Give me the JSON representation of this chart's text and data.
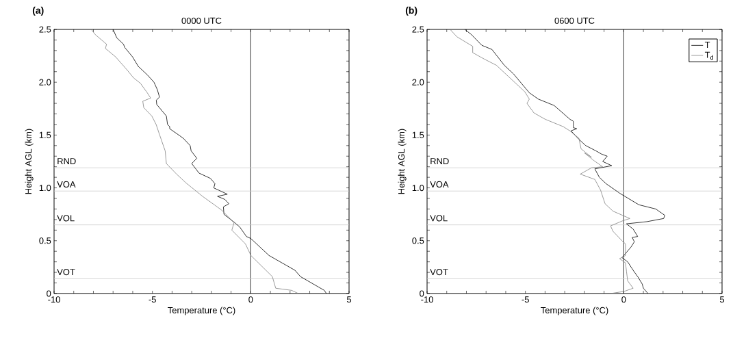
{
  "chart_data": [
    {
      "type": "line",
      "title": "0000 UTC",
      "xlabel": "Temperature (°C)",
      "ylabel": "Height AGL (km)",
      "annotations": [
        "(a)"
      ],
      "xlim": [
        -10,
        5
      ],
      "ylim": [
        0,
        2.5
      ],
      "xticks": [
        -10,
        {
          "value": -9,
          "label": null
        },
        {
          "value": -8,
          "label": null
        },
        {
          "value": -7,
          "label": null
        },
        {
          "value": -6,
          "label": null
        },
        -5,
        {
          "value": -4,
          "label": null
        },
        {
          "value": -3,
          "label": null
        },
        {
          "value": -2,
          "label": null
        },
        {
          "value": -1,
          "label": null
        },
        0,
        {
          "value": 1,
          "label": null
        },
        {
          "value": 2,
          "label": null
        },
        {
          "value": 3,
          "label": null
        },
        {
          "value": 4,
          "label": null
        },
        5
      ],
      "yticks": [
        0,
        {
          "value": 0.1,
          "label": null
        },
        {
          "value": 0.2,
          "label": null
        },
        {
          "value": 0.3,
          "label": null
        },
        {
          "value": 0.4,
          "label": null
        },
        0.5,
        {
          "value": 0.6,
          "label": null
        },
        {
          "value": 0.7,
          "label": null
        },
        {
          "value": 0.8,
          "label": null
        },
        {
          "value": 0.9,
          "label": null
        },
        {
          "value": 1,
          "label": "1.0"
        },
        {
          "value": 1.1,
          "label": null
        },
        {
          "value": 1.2,
          "label": null
        },
        {
          "value": 1.3,
          "label": null
        },
        {
          "value": 1.4,
          "label": null
        },
        1.5,
        {
          "value": 1.6,
          "label": null
        },
        {
          "value": 1.7,
          "label": null
        },
        {
          "value": 1.8,
          "label": null
        },
        {
          "value": 1.9,
          "label": null
        },
        {
          "value": 2,
          "label": "2.0"
        },
        {
          "value": 2.1,
          "label": null
        },
        {
          "value": 2.2,
          "label": null
        },
        {
          "value": 2.3,
          "label": null
        },
        {
          "value": 2.4,
          "label": null
        },
        2.5
      ],
      "grid": false,
      "legend": false,
      "marker": "none",
      "line_style": "solid",
      "ref_lines": [
        {
          "axis": "x",
          "value": 0,
          "color": "#000000"
        },
        {
          "axis": "y",
          "value": 1.19,
          "label": "RND",
          "color": "#cccccc"
        },
        {
          "axis": "y",
          "value": 0.97,
          "label": "VOA",
          "color": "#cccccc"
        },
        {
          "axis": "y",
          "value": 0.65,
          "label": "VOL",
          "color": "#cccccc"
        },
        {
          "axis": "y",
          "value": 0.14,
          "label": "VOT",
          "color": "#cccccc"
        }
      ],
      "series": [
        {
          "color": "#000000",
          "x": [
            -7.0,
            -6.81,
            -6.47,
            -6.41,
            -6.01,
            -5.72,
            -5.26,
            -4.92,
            -4.75,
            -4.64,
            -4.8,
            -4.78,
            -4.29,
            -4.23,
            -4.12,
            -4.12,
            -3.43,
            -3.08,
            -3.03,
            -2.74,
            -3.0,
            -2.63,
            -2.05,
            -1.82,
            -1.88,
            -1.19,
            -1.69,
            -1.31,
            -1.11,
            -1.39,
            -1.36,
            -0.81,
            -0.56,
            -0.22,
            0.01,
            0.93,
            2.25,
            2.53,
            3.74,
            3.85
          ],
          "values": [
            2.5,
            2.42,
            2.36,
            2.33,
            2.24,
            2.15,
            2.07,
            2.0,
            1.93,
            1.86,
            1.83,
            1.79,
            1.68,
            1.6,
            1.58,
            1.56,
            1.47,
            1.4,
            1.35,
            1.28,
            1.23,
            1.14,
            1.09,
            1.04,
            1.0,
            0.94,
            0.92,
            0.89,
            0.85,
            0.82,
            0.75,
            0.67,
            0.63,
            0.54,
            0.52,
            0.36,
            0.22,
            0.16,
            0.03,
            0
          ]
        },
        {
          "color": "#808080",
          "x": [
            -8.11,
            -7.9,
            -7.33,
            -7.39,
            -6.87,
            -6.35,
            -5.95,
            -5.61,
            -5.26,
            -5.09,
            -5.49,
            -5.44,
            -5.03,
            -4.81,
            -4.63,
            -4.35,
            -4.29,
            -3.77,
            -3.31,
            -2.45,
            -1.48,
            -0.85,
            -0.96,
            -0.27,
            0.01,
            1.1,
            1.27,
            2.08,
            2.42
          ],
          "values": [
            2.5,
            2.45,
            2.36,
            2.32,
            2.24,
            2.13,
            2.04,
            1.99,
            1.9,
            1.85,
            1.82,
            1.76,
            1.68,
            1.6,
            1.5,
            1.35,
            1.23,
            1.13,
            1.05,
            0.92,
            0.79,
            0.67,
            0.6,
            0.47,
            0.36,
            0.16,
            0.05,
            0.03,
            0
          ]
        }
      ]
    },
    {
      "type": "line",
      "title": "0600 UTC",
      "xlabel": "Temperature (°C)",
      "ylabel": "Height AGL (km)",
      "annotations": [
        "(b)"
      ],
      "xlim": [
        -10,
        5
      ],
      "ylim": [
        0,
        2.5
      ],
      "xticks": [
        -10,
        {
          "value": -9,
          "label": null
        },
        {
          "value": -8,
          "label": null
        },
        {
          "value": -7,
          "label": null
        },
        {
          "value": -6,
          "label": null
        },
        -5,
        {
          "value": -4,
          "label": null
        },
        {
          "value": -3,
          "label": null
        },
        {
          "value": -2,
          "label": null
        },
        {
          "value": -1,
          "label": null
        },
        0,
        {
          "value": 1,
          "label": null
        },
        {
          "value": 2,
          "label": null
        },
        {
          "value": 3,
          "label": null
        },
        {
          "value": 4,
          "label": null
        },
        5
      ],
      "yticks": [
        0,
        {
          "value": 0.1,
          "label": null
        },
        {
          "value": 0.2,
          "label": null
        },
        {
          "value": 0.3,
          "label": null
        },
        {
          "value": 0.4,
          "label": null
        },
        0.5,
        {
          "value": 0.6,
          "label": null
        },
        {
          "value": 0.7,
          "label": null
        },
        {
          "value": 0.8,
          "label": null
        },
        {
          "value": 0.9,
          "label": null
        },
        {
          "value": 1,
          "label": "1.0"
        },
        {
          "value": 1.1,
          "label": null
        },
        {
          "value": 1.2,
          "label": null
        },
        {
          "value": 1.3,
          "label": null
        },
        {
          "value": 1.4,
          "label": null
        },
        1.5,
        {
          "value": 1.6,
          "label": null
        },
        {
          "value": 1.7,
          "label": null
        },
        {
          "value": 1.8,
          "label": null
        },
        {
          "value": 1.9,
          "label": null
        },
        {
          "value": 2,
          "label": "2.0"
        },
        {
          "value": 2.1,
          "label": null
        },
        {
          "value": 2.2,
          "label": null
        },
        {
          "value": 2.3,
          "label": null
        },
        {
          "value": 2.4,
          "label": null
        },
        2.5
      ],
      "grid": false,
      "legend": "top right",
      "marker": "none",
      "line_style": "solid",
      "ref_lines": [
        {
          "axis": "x",
          "value": 0,
          "color": "#000000"
        },
        {
          "axis": "y",
          "value": 1.19,
          "label": "RND",
          "color": "#cccccc"
        },
        {
          "axis": "y",
          "value": 0.97,
          "label": "VOA",
          "color": "#cccccc"
        },
        {
          "axis": "y",
          "value": 0.65,
          "label": "VOL",
          "color": "#cccccc"
        },
        {
          "axis": "y",
          "value": 0.14,
          "label": "VOT",
          "color": "#cccccc"
        }
      ],
      "series": [
        {
          "name": "T",
          "color": "#000000",
          "x": [
            -8.08,
            -7.74,
            -7.22,
            -6.7,
            -6.07,
            -5.61,
            -4.8,
            -4.34,
            -3.54,
            -2.74,
            -2.56,
            -2.56,
            -2.39,
            -2.68,
            -2.28,
            -1.93,
            -1.41,
            -1.13,
            -0.84,
            -1.07,
            -0.61,
            -1.47,
            -1.24,
            -0.9,
            -0.21,
            0.77,
            1.63,
            2.09,
            2.03,
            1.17,
            0.14,
            0.48,
            0.71,
            0.43,
            0.54,
            0.37,
            -0.09,
            0.2,
            0.48,
            0.71,
            0.94,
            1.0,
            1.23
          ],
          "values": [
            2.5,
            2.45,
            2.35,
            2.31,
            2.16,
            2.08,
            1.9,
            1.84,
            1.78,
            1.65,
            1.63,
            1.57,
            1.56,
            1.54,
            1.46,
            1.4,
            1.35,
            1.32,
            1.3,
            1.25,
            1.21,
            1.18,
            1.1,
            1.04,
            0.95,
            0.84,
            0.8,
            0.74,
            0.71,
            0.68,
            0.66,
            0.61,
            0.54,
            0.53,
            0.49,
            0.44,
            0.34,
            0.3,
            0.22,
            0.16,
            0.09,
            0.05,
            0
          ]
        },
        {
          "name": "T$_{d}$",
          "color": "#808080",
          "x": [
            -8.83,
            -8.48,
            -7.68,
            -7.68,
            -7.1,
            -6.47,
            -5.84,
            -5.03,
            -4.8,
            -4.92,
            -4.57,
            -4.0,
            -3.08,
            -2.74,
            -2.28,
            -2.17,
            -1.64,
            -1.99,
            -1.53,
            -1.07,
            -1.64,
            -2.21,
            -1.47,
            -1.18,
            -0.95,
            -0.55,
            0.31,
            -0.03,
            -0.67,
            -0.55,
            -0.09,
            0.09,
            0.09,
            -0.21,
            0.09,
            0.14,
            0.2,
            0.48,
            0.02,
            -0.67
          ],
          "values": [
            2.5,
            2.43,
            2.34,
            2.28,
            2.22,
            2.16,
            2.05,
            1.91,
            1.84,
            1.8,
            1.71,
            1.65,
            1.58,
            1.54,
            1.47,
            1.37,
            1.29,
            1.33,
            1.26,
            1.2,
            1.19,
            1.13,
            1.08,
            0.98,
            0.85,
            0.78,
            0.71,
            0.69,
            0.64,
            0.59,
            0.5,
            0.47,
            0.36,
            0.33,
            0.29,
            0.21,
            0.12,
            0.05,
            0.02,
            0
          ]
        }
      ]
    }
  ]
}
